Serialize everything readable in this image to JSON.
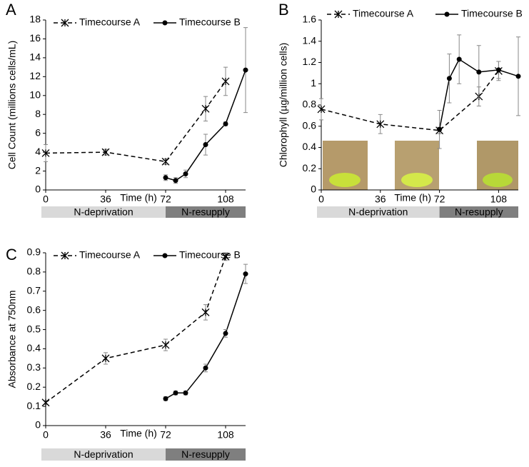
{
  "chart_data": [
    {
      "type": "line",
      "panel": "A",
      "ylabel": "Cell Count (millions cells/mL)",
      "xlabel": "Time (h)",
      "xlim": [
        0,
        120
      ],
      "xticks": [
        0,
        36,
        72,
        108
      ],
      "ylim": [
        0,
        18
      ],
      "yticks": [
        0,
        2,
        4,
        6,
        8,
        10,
        12,
        14,
        16,
        18
      ],
      "phases": [
        {
          "label": "N-deprivation",
          "range": [
            0,
            72
          ],
          "color": "#d9d9d9"
        },
        {
          "label": "N-resupply",
          "range": [
            72,
            120
          ],
          "color": "#7f7f7f"
        }
      ],
      "series": [
        {
          "name": "Timecourse A",
          "color": "#000000",
          "dashed": true,
          "marker": "star",
          "x": [
            0,
            36,
            72,
            96,
            108
          ],
          "values": [
            3.9,
            4.0,
            3.0,
            8.6,
            11.5
          ],
          "errors": [
            0.9,
            0.3,
            0.3,
            1.3,
            1.5
          ]
        },
        {
          "name": "Timecourse B",
          "color": "#000000",
          "dashed": false,
          "marker": "circle",
          "x": [
            72,
            78,
            84,
            96,
            108,
            120
          ],
          "values": [
            1.3,
            1.0,
            1.7,
            4.8,
            7.0,
            12.7
          ],
          "errors": [
            0.3,
            0.3,
            0.4,
            1.1,
            0.2,
            4.5
          ]
        }
      ]
    },
    {
      "type": "line",
      "panel": "B",
      "ylabel": "Chlorophyll (µg/million cells)",
      "xlabel": "Time (h)",
      "xlim": [
        0,
        120
      ],
      "xticks": [
        0,
        36,
        72,
        108
      ],
      "ylim": [
        0,
        1.6
      ],
      "yticks": [
        0,
        0.2,
        0.4,
        0.6,
        0.8,
        1,
        1.2,
        1.4,
        1.6
      ],
      "phases": [
        {
          "label": "N-deprivation",
          "range": [
            0,
            72
          ],
          "color": "#d9d9d9"
        },
        {
          "label": "N-resupply",
          "range": [
            72,
            120
          ],
          "color": "#7f7f7f"
        }
      ],
      "series": [
        {
          "name": "Timecourse A",
          "color": "#000000",
          "dashed": true,
          "marker": "star",
          "x": [
            0,
            36,
            72,
            96,
            108
          ],
          "values": [
            0.76,
            0.62,
            0.56,
            0.88,
            1.12
          ],
          "errors": [
            0.1,
            0.09,
            0.03,
            0.09,
            0.09
          ]
        },
        {
          "name": "Timecourse B",
          "color": "#000000",
          "dashed": false,
          "marker": "circle",
          "x": [
            72,
            78,
            84,
            96,
            108,
            120
          ],
          "values": [
            0.57,
            1.05,
            1.23,
            1.11,
            1.13,
            1.07
          ],
          "errors": [
            0.18,
            0.23,
            0.23,
            0.25,
            0.08,
            0.37
          ]
        }
      ]
    },
    {
      "type": "line",
      "panel": "C",
      "ylabel": "Absorbance at 750nm",
      "xlabel": "Time (h)",
      "xlim": [
        0,
        120
      ],
      "xticks": [
        0,
        36,
        72,
        108
      ],
      "ylim": [
        0,
        0.9
      ],
      "yticks": [
        0,
        0.1,
        0.2,
        0.3,
        0.4,
        0.5,
        0.6,
        0.7,
        0.8,
        0.9
      ],
      "phases": [
        {
          "label": "N-deprivation",
          "range": [
            0,
            72
          ],
          "color": "#d9d9d9"
        },
        {
          "label": "N-resupply",
          "range": [
            72,
            120
          ],
          "color": "#7f7f7f"
        }
      ],
      "series": [
        {
          "name": "Timecourse A",
          "color": "#000000",
          "dashed": true,
          "marker": "star",
          "x": [
            0,
            36,
            72,
            96,
            108
          ],
          "values": [
            0.12,
            0.35,
            0.42,
            0.59,
            0.88
          ],
          "errors": [
            0.01,
            0.03,
            0.03,
            0.04,
            0.02
          ]
        },
        {
          "name": "Timecourse B",
          "color": "#000000",
          "dashed": false,
          "marker": "circle",
          "x": [
            72,
            78,
            84,
            96,
            108,
            120
          ],
          "values": [
            0.14,
            0.17,
            0.17,
            0.3,
            0.48,
            0.79
          ],
          "errors": [
            0.01,
            0.01,
            0.01,
            0.02,
            0.02,
            0.05
          ]
        }
      ]
    }
  ]
}
